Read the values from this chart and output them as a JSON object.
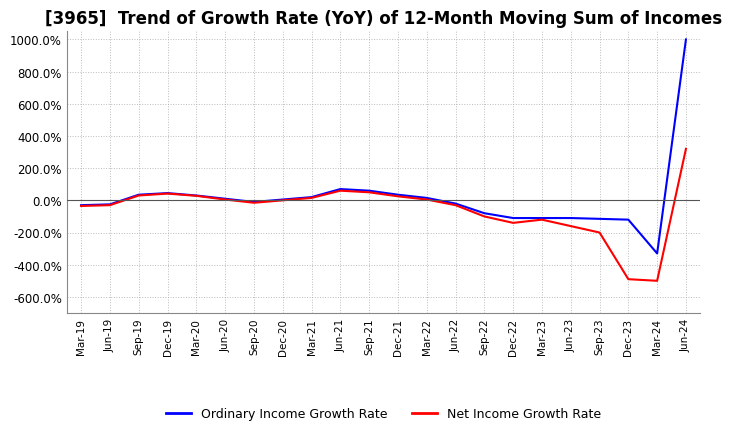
{
  "title": "[3965]  Trend of Growth Rate (YoY) of 12-Month Moving Sum of Incomes",
  "ylim": [
    -700,
    1050
  ],
  "yticks": [
    -600,
    -400,
    -200,
    0,
    200,
    400,
    600,
    800,
    1000
  ],
  "ytick_labels": [
    "-600.0%",
    "-400.0%",
    "-200.0%",
    "0.0%",
    "200.0%",
    "400.0%",
    "600.0%",
    "800.0%",
    "1000.0%"
  ],
  "legend": [
    "Ordinary Income Growth Rate",
    "Net Income Growth Rate"
  ],
  "line_colors": [
    "blue",
    "red"
  ],
  "x_labels": [
    "Mar-19",
    "Jun-19",
    "Sep-19",
    "Dec-19",
    "Mar-20",
    "Jun-20",
    "Sep-20",
    "Dec-20",
    "Mar-21",
    "Jun-21",
    "Sep-21",
    "Dec-21",
    "Mar-22",
    "Jun-22",
    "Sep-22",
    "Dec-22",
    "Mar-23",
    "Jun-23",
    "Sep-23",
    "Dec-23",
    "Mar-24",
    "Jun-24"
  ],
  "ordinary_income_growth": [
    -30,
    -25,
    35,
    45,
    30,
    10,
    -10,
    5,
    20,
    70,
    60,
    35,
    15,
    -20,
    -80,
    -110,
    -110,
    -110,
    -115,
    -120,
    -330,
    1000
  ],
  "net_income_growth": [
    -35,
    -30,
    30,
    42,
    28,
    5,
    -15,
    0,
    15,
    60,
    50,
    25,
    5,
    -30,
    -100,
    -140,
    -120,
    -160,
    -200,
    -490,
    -500,
    320
  ],
  "background_color": "#ffffff",
  "grid_color": "#aaaaaa",
  "title_fontsize": 12,
  "line_width": 1.5
}
